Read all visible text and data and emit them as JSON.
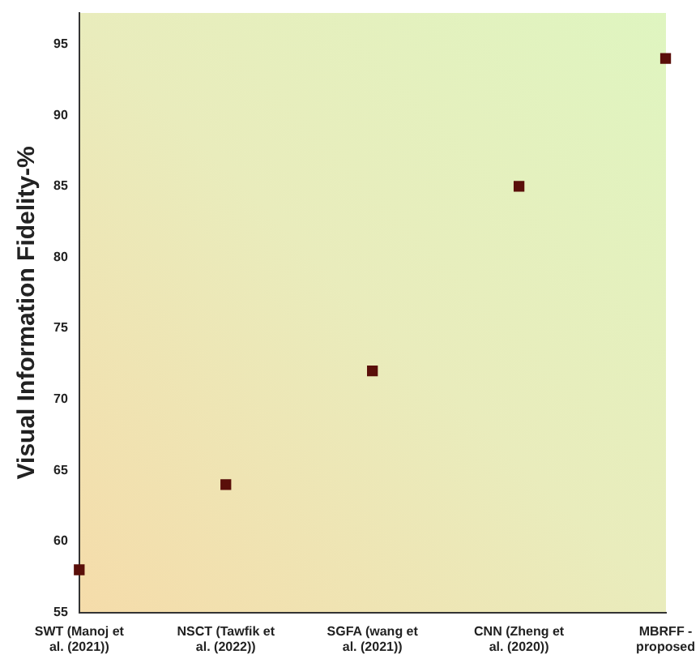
{
  "chart_data": {
    "type": "scatter",
    "ylabel": "Visual Information Fidelity-%",
    "categories": [
      "SWT (Manoj et al. (2021))",
      "NSCT (Tawfik et al. (2022))",
      "SGFA (wang et al. (2021))",
      "CNN (Zheng et al. (2020))",
      "MBRFF - proposed"
    ],
    "values": [
      58,
      64,
      72,
      85,
      94
    ],
    "color": "#5a0f0a",
    "marker": "square",
    "ylim": [
      55,
      97.2
    ],
    "yticks": [
      55,
      60,
      65,
      70,
      75,
      80,
      85,
      90,
      95
    ],
    "grid": false,
    "legend": false
  }
}
